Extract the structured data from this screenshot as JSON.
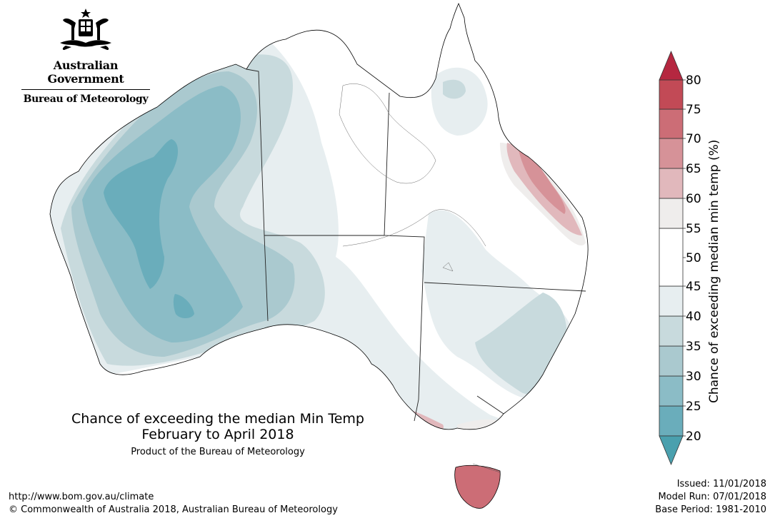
{
  "header": {
    "government": "Australian Government",
    "bureau": "Bureau of Meteorology"
  },
  "map": {
    "title_line1": "Chance of exceeding the median Min Temp",
    "title_line2": "February to April 2018",
    "subtitle": "Product of the Bureau of Meteorology"
  },
  "legend": {
    "title": "Chance of exceeding median min temp (%)",
    "ticks": [
      "20",
      "25",
      "30",
      "35",
      "40",
      "45",
      "50",
      "55",
      "60",
      "65",
      "70",
      "75",
      "80"
    ],
    "colors": {
      "bin_20_25": "#6aadbb",
      "bin_25_30": "#8bbcc6",
      "bin_30_35": "#aac9cf",
      "bin_35_40": "#c8dadd",
      "bin_40_45": "#e7eef0",
      "bin_45_55": "#ffffff",
      "bin_55_60": "#efedec",
      "bin_60_65": "#e1b8bc",
      "bin_65_70": "#d69298",
      "bin_70_75": "#cc6d76",
      "bin_75_80": "#c24a56",
      "above_80": "#b52740",
      "below_20": "#4aa0ae"
    }
  },
  "footer": {
    "url": "http://www.bom.gov.au/climate",
    "copyright": "© Commonwealth of Australia 2018, Australian Bureau of Meteorology",
    "issued": "Issued: 11/01/2018",
    "model_run": "Model Run: 07/01/2018",
    "base_period": "Base Period: 1981-2010"
  }
}
